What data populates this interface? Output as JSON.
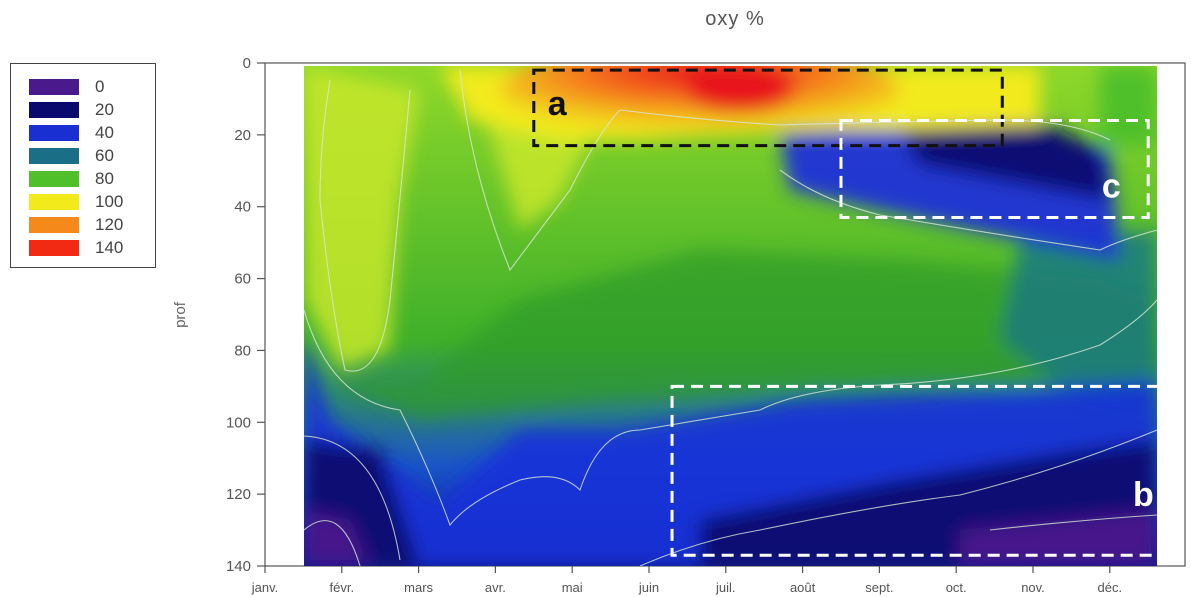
{
  "chart_data": {
    "type": "heatmap",
    "title": "oxy %",
    "ylabel": "prof",
    "xlabel": "",
    "y_ticks": [
      "0",
      "20",
      "40",
      "60",
      "80",
      "100",
      "120",
      "140"
    ],
    "y_values": [
      0,
      20,
      40,
      60,
      80,
      100,
      120,
      140
    ],
    "ylim": [
      0,
      140
    ],
    "y_inverted": true,
    "x_ticks": [
      "janv.",
      "févr.",
      "mars",
      "avr.",
      "mai",
      "juin",
      "juil.",
      "août",
      "sept.",
      "oct.",
      "nov.",
      "déc."
    ],
    "legend": {
      "position": "left",
      "entries": [
        {
          "label": "0",
          "color": "#4a1a8c"
        },
        {
          "label": "20",
          "color": "#0a0a6e"
        },
        {
          "label": "40",
          "color": "#1a2fd1"
        },
        {
          "label": "60",
          "color": "#1a6e86"
        },
        {
          "label": "80",
          "color": "#4fc02a"
        },
        {
          "label": "100",
          "color": "#f2ea1a"
        },
        {
          "label": "120",
          "color": "#f58a1a"
        },
        {
          "label": "140",
          "color": "#f22a14"
        }
      ]
    },
    "annotations": [
      {
        "label": "a",
        "months": [
          3.5,
          9.6
        ],
        "depth": [
          2,
          23
        ]
      },
      {
        "label": "b",
        "months": [
          5.3,
          11.9
        ],
        "depth": [
          90,
          137
        ]
      },
      {
        "label": "c",
        "months": [
          7.5,
          11.5
        ],
        "depth": [
          16,
          43
        ]
      }
    ]
  }
}
